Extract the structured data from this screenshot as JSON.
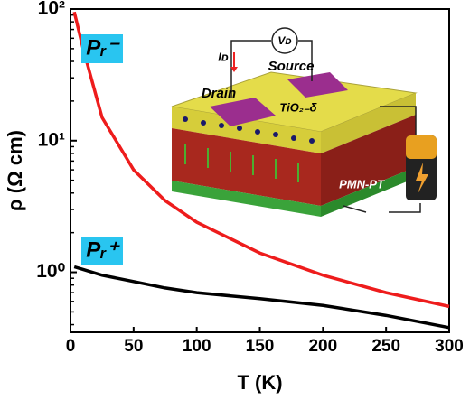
{
  "chart_data": {
    "type": "line",
    "x_label": "T (K)",
    "y_label": "ρ (Ω cm)",
    "x": [
      3,
      10,
      25,
      50,
      75,
      100,
      150,
      200,
      250,
      300
    ],
    "series": [
      {
        "color": "#ee1c1c",
        "values": [
          95,
          50,
          15,
          6,
          3.5,
          2.4,
          1.4,
          0.95,
          0.7,
          0.55
        ]
      },
      {
        "color": "#000000",
        "values": [
          1.1,
          1.05,
          0.95,
          0.85,
          0.76,
          0.7,
          0.63,
          0.56,
          0.47,
          0.38
        ]
      }
    ],
    "xlim": [
      0,
      300
    ],
    "xticks": [
      0,
      50,
      100,
      150,
      200,
      250,
      300
    ],
    "ylim": [
      0.35,
      100
    ],
    "log_y": true,
    "yticks": [
      {
        "value": 1,
        "label": "10⁰"
      },
      {
        "value": 10,
        "label": "10¹"
      },
      {
        "value": 100,
        "label": "10²"
      }
    ],
    "annotations": [
      "Pᵣ⁻",
      "Pᵣ⁺",
      "Drain",
      "Source",
      "TiO₂₋δ",
      "PMN-PT",
      "Iᴅ",
      "Vᴅ"
    ]
  }
}
